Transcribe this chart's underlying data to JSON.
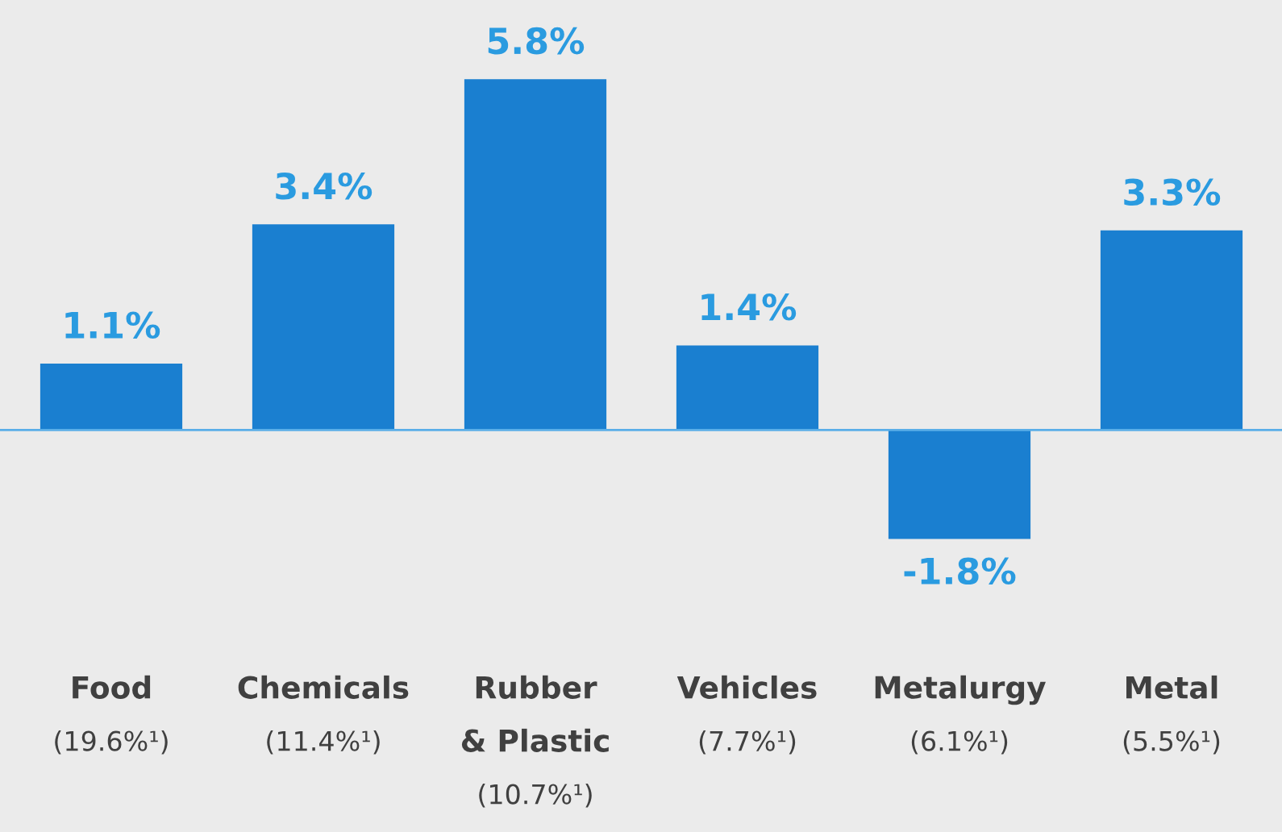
{
  "chart_data": {
    "type": "bar",
    "categories": [
      "Food\n(19.6%¹)",
      "Chemicals\n(11.4%¹)",
      "Rubber\n& Plastic\n(10.7%¹)",
      "Vehicles\n(7.7%¹)",
      "Metalurgy\n(6.1%¹)",
      "Metal\n(5.5%¹)"
    ],
    "values": [
      1.1,
      3.4,
      5.8,
      1.4,
      -1.8,
      3.3
    ],
    "value_labels": [
      "1.1%",
      "3.4%",
      "5.8%",
      "1.4%",
      "-1.8%",
      "3.3%"
    ],
    "color": "#1a7fd0",
    "ref_lines": [
      {
        "axis": "y",
        "value": 0,
        "color": "#5aaee8"
      }
    ]
  }
}
